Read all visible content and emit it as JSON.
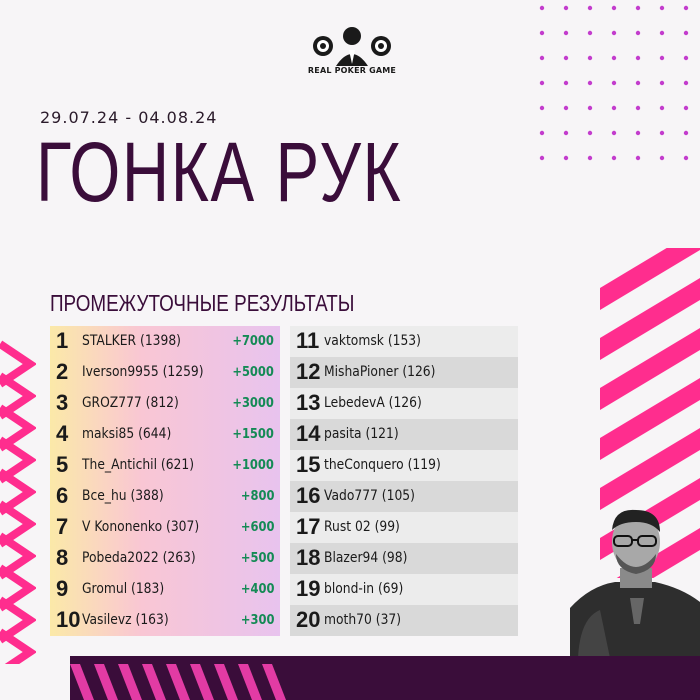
{
  "logo": {
    "text": "REAL POKER GAME"
  },
  "header": {
    "date_range": "29.07.24 - 04.08.24",
    "title": "ГОНКА РУК",
    "subtitle": "ПРОМЕЖУТОЧНЫЕ РЕЗУЛЬТАТЫ"
  },
  "leaderboard": {
    "left": [
      {
        "rank": "1",
        "player": "STALKER (1398)",
        "prize": "+7000"
      },
      {
        "rank": "2",
        "player": "Iverson9955 (1259)",
        "prize": "+5000"
      },
      {
        "rank": "3",
        "player": "GROZ777 (812)",
        "prize": "+3000"
      },
      {
        "rank": "4",
        "player": "maksi85 (644)",
        "prize": "+1500"
      },
      {
        "rank": "5",
        "player": "The_Antichil (621)",
        "prize": "+1000"
      },
      {
        "rank": "6",
        "player": "Bce_hu (388)",
        "prize": "+800"
      },
      {
        "rank": "7",
        "player": "V Kononenko (307)",
        "prize": "+600"
      },
      {
        "rank": "8",
        "player": "Pobeda2022 (263)",
        "prize": "+500"
      },
      {
        "rank": "9",
        "player": "Gromul (183)",
        "prize": "+400"
      },
      {
        "rank": "10",
        "player": "Vasilevz (163)",
        "prize": "+300"
      }
    ],
    "right": [
      {
        "rank": "11",
        "player": "vaktomsk (153)"
      },
      {
        "rank": "12",
        "player": "MishaPioner (126)"
      },
      {
        "rank": "13",
        "player": "LebedevA (126)"
      },
      {
        "rank": "14",
        "player": "pasita (121)"
      },
      {
        "rank": "15",
        "player": "theConquero (119)"
      },
      {
        "rank": "16",
        "player": "Vado777 (105)"
      },
      {
        "rank": "17",
        "player": "Rust 02 (99)"
      },
      {
        "rank": "18",
        "player": "Blazer94 (98)"
      },
      {
        "rank": "19",
        "player": "blond-in (69)"
      },
      {
        "rank": "20",
        "player": "moth70 (37)"
      }
    ]
  },
  "colors": {
    "accent": "#ff2d8e",
    "dark": "#3a0d3a",
    "dots": "#c33ccd",
    "prize": "#148a55"
  },
  "icons": [
    "poker-chip-icon",
    "player-avatar-icon"
  ]
}
